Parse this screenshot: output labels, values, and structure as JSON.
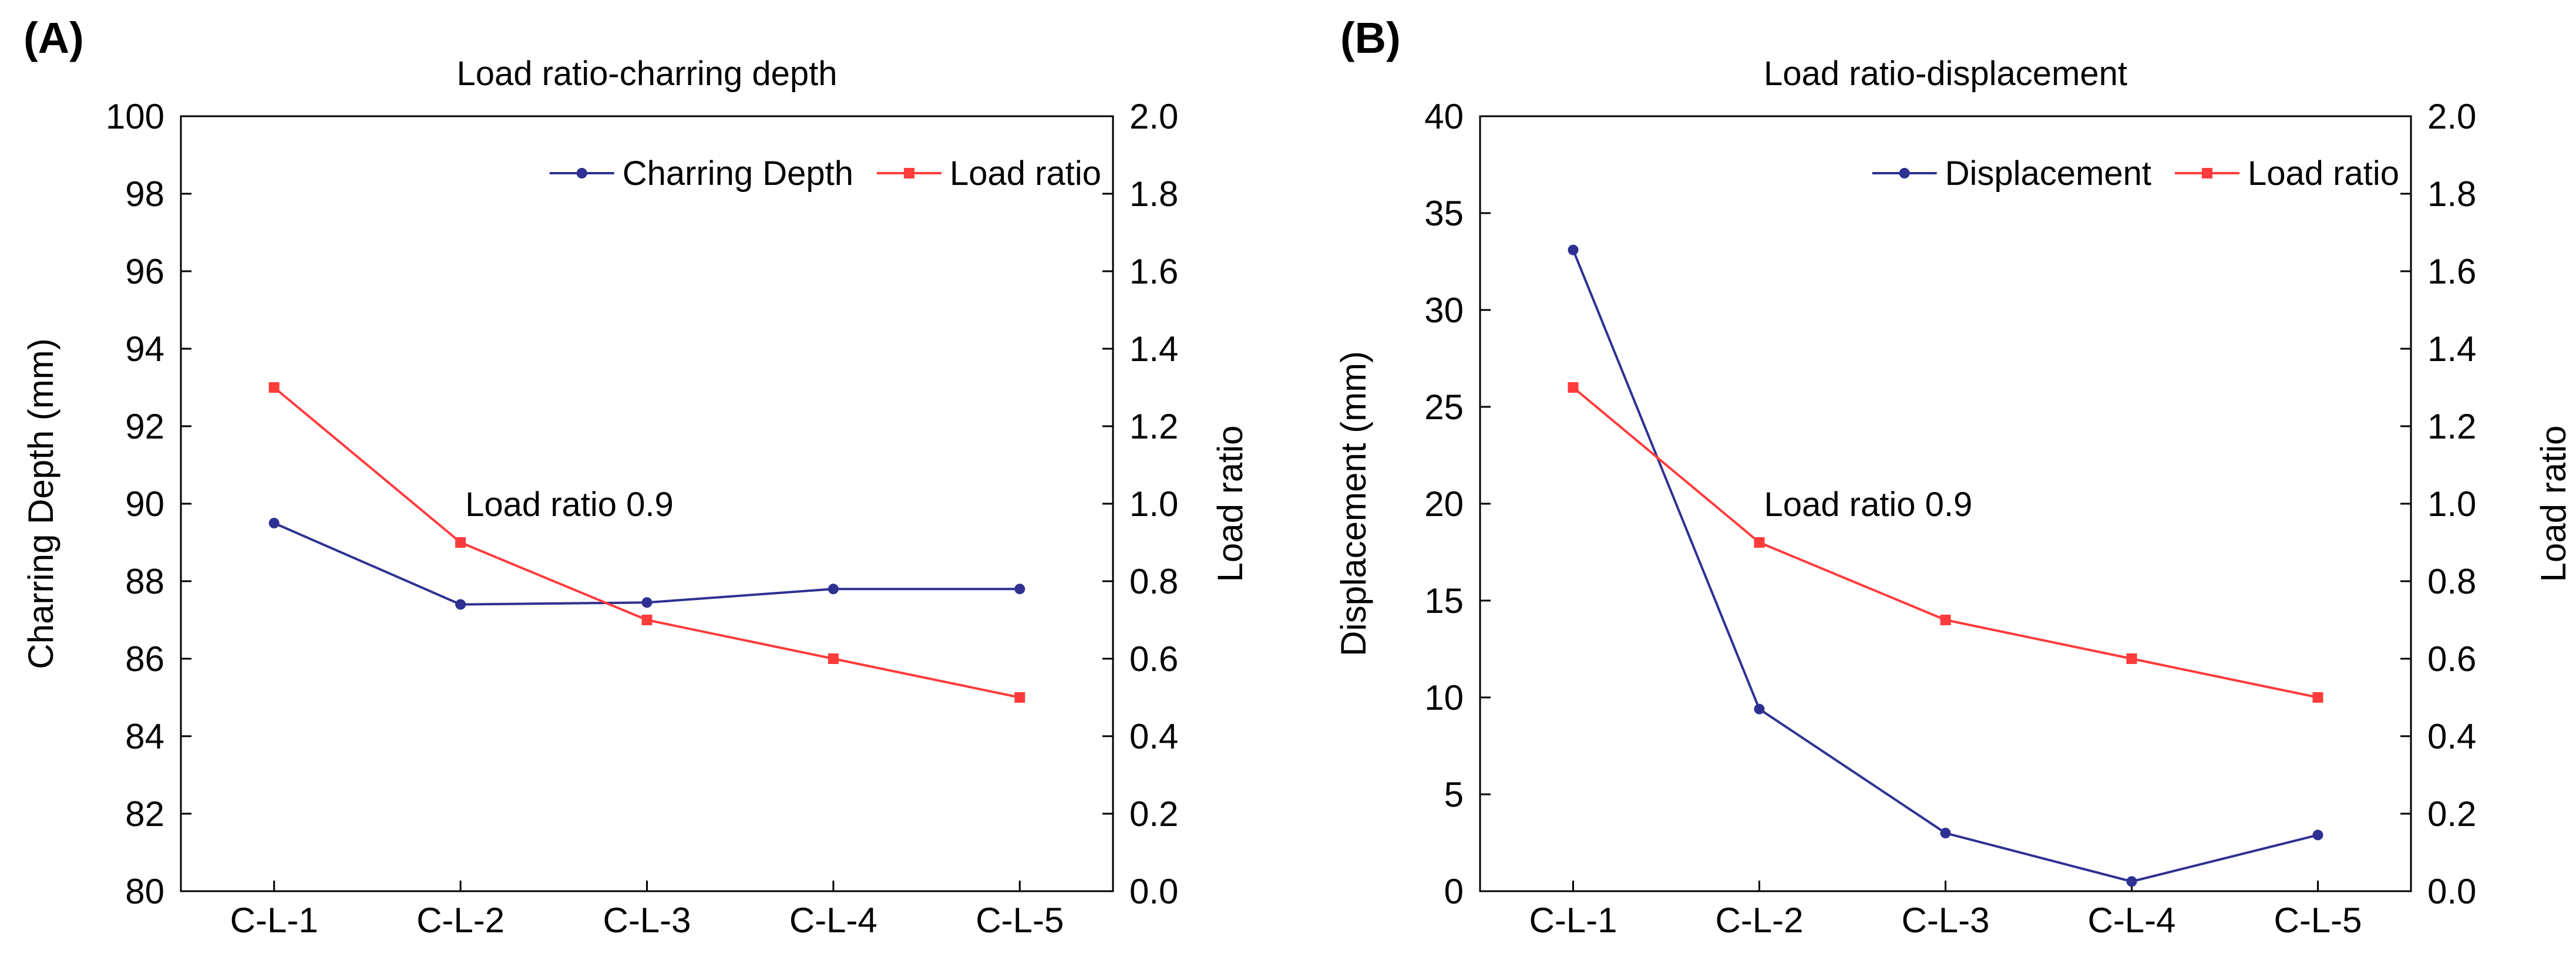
{
  "chart_data": [
    {
      "type": "line",
      "panel_label": "(A)",
      "title": "Load ratio-charring depth",
      "categories": [
        "C-L-1",
        "C-L-2",
        "C-L-3",
        "C-L-4",
        "C-L-5"
      ],
      "ylabel": "Charring Depth (mm)",
      "y2label": "Load ratio",
      "ylim": [
        80,
        100
      ],
      "yticks": [
        80,
        82,
        84,
        86,
        88,
        90,
        92,
        94,
        96,
        98,
        100
      ],
      "y2lim": [
        0.0,
        2.0
      ],
      "y2ticks": [
        "0.0",
        "0.2",
        "0.4",
        "0.6",
        "0.8",
        "1.0",
        "1.2",
        "1.4",
        "1.6",
        "1.8",
        "2.0"
      ],
      "legend_position": "top-right",
      "series": [
        {
          "name": "Charring Depth",
          "axis": "left",
          "color": "#2e3192",
          "marker": "circle",
          "values": [
            89.5,
            87.4,
            87.45,
            87.8,
            87.8
          ]
        },
        {
          "name": "Load ratio",
          "axis": "right",
          "color": "#ff3b3b",
          "marker": "square",
          "values": [
            1.3,
            0.9,
            0.7,
            0.6,
            0.5
          ]
        }
      ],
      "annotation": {
        "text": "Load ratio 0.9",
        "category": "C-L-2",
        "value": 0.9
      }
    },
    {
      "type": "line",
      "panel_label": "(B)",
      "title": "Load ratio-displacement",
      "categories": [
        "C-L-1",
        "C-L-2",
        "C-L-3",
        "C-L-4",
        "C-L-5"
      ],
      "ylabel": "Displacement (mm)",
      "y2label": "Load ratio",
      "ylim": [
        0,
        40
      ],
      "yticks": [
        0,
        5,
        10,
        15,
        20,
        25,
        30,
        35,
        40
      ],
      "y2lim": [
        0.0,
        2.0
      ],
      "y2ticks": [
        "0.0",
        "0.2",
        "0.4",
        "0.6",
        "0.8",
        "1.0",
        "1.2",
        "1.4",
        "1.6",
        "1.8",
        "2.0"
      ],
      "legend_position": "top-right",
      "series": [
        {
          "name": "Displacement",
          "axis": "left",
          "color": "#2e3192",
          "marker": "circle",
          "values": [
            33.1,
            9.4,
            3.0,
            0.5,
            2.9
          ]
        },
        {
          "name": "Load ratio",
          "axis": "right",
          "color": "#ff3b3b",
          "marker": "square",
          "values": [
            1.3,
            0.9,
            0.7,
            0.6,
            0.5
          ]
        }
      ],
      "annotation": {
        "text": "Load ratio 0.9",
        "category": "C-L-2",
        "value": 0.9
      }
    }
  ]
}
